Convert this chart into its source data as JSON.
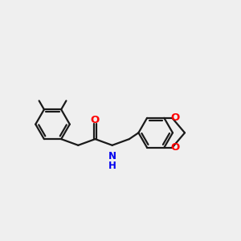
{
  "bg_color": "#efefef",
  "bond_color": "#1a1a1a",
  "O_color": "#ff0000",
  "N_color": "#0000ee",
  "lw": 1.6,
  "dbo": 0.055,
  "r_hex": 0.68,
  "figsize": [
    3.0,
    3.0
  ],
  "dpi": 100,
  "xlim": [
    0.0,
    9.5
  ],
  "ylim": [
    2.2,
    7.8
  ]
}
